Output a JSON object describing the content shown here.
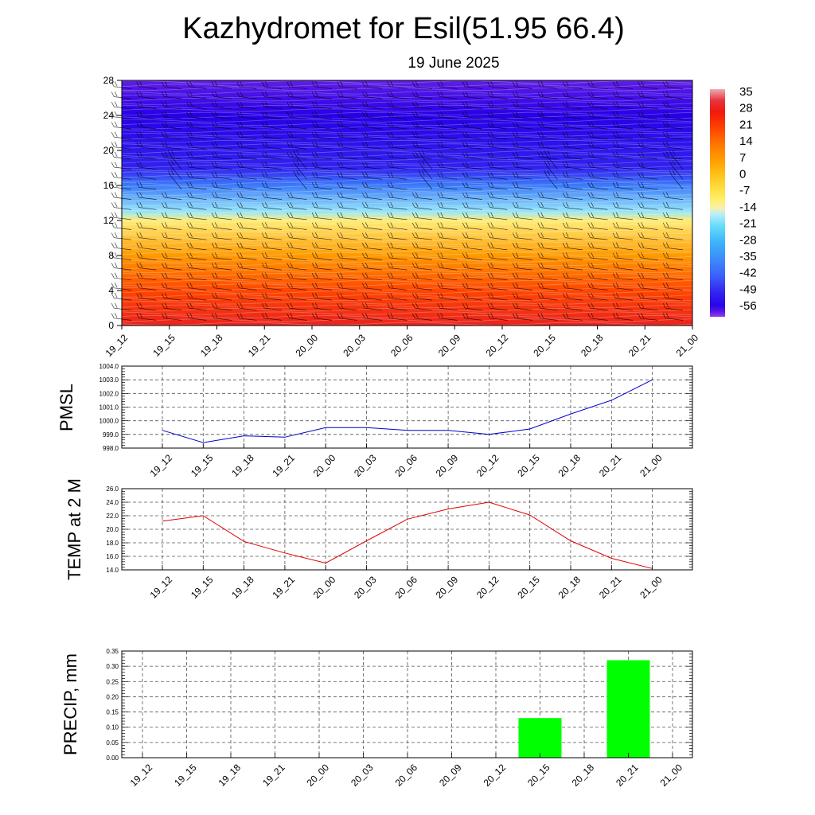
{
  "title": "Kazhydromet for Esil(51.95 66.4)",
  "subtitle": "19 June 2025",
  "time_labels": [
    "19_12",
    "19_15",
    "19_18",
    "19_21",
    "20_00",
    "20_03",
    "20_06",
    "20_09",
    "20_12",
    "20_15",
    "20_18",
    "20_21",
    "21_00"
  ],
  "colors": {
    "pmsl_line": "#0000cc",
    "temp_line": "#e00000",
    "precip_bar": "#00ff00",
    "grid": "#555555",
    "contour": "#ffffff",
    "barb": "#000000"
  },
  "chart_data": [
    {
      "type": "heatmap",
      "name_hint": "upper-air temperature cross-section",
      "x_categories": [
        "19_12",
        "19_15",
        "19_18",
        "19_21",
        "20_00",
        "20_03",
        "20_06",
        "20_09",
        "20_12",
        "20_15",
        "20_18",
        "20_21",
        "21_00"
      ],
      "y_ticks": [
        0,
        4,
        8,
        12,
        16,
        20,
        24,
        28
      ],
      "ylim": [
        0,
        28
      ],
      "colorbar_labels": [
        "35",
        "28",
        "21",
        "14",
        "7",
        "0",
        "-7",
        "-14",
        "-21",
        "-28",
        "-35",
        "-42",
        "-49",
        "-56"
      ],
      "colorbar_range": [
        -60,
        38
      ],
      "value_profile": [
        {
          "y": 0,
          "v": 30
        },
        {
          "y": 4,
          "v": 21
        },
        {
          "y": 8,
          "v": 8
        },
        {
          "y": 12,
          "v": -10
        },
        {
          "y": 13,
          "v": -18
        },
        {
          "y": 16,
          "v": -38
        },
        {
          "y": 18,
          "v": -50
        },
        {
          "y": 20,
          "v": -52
        },
        {
          "y": 24,
          "v": -56
        },
        {
          "y": 28,
          "v": -58
        }
      ],
      "grid": false
    },
    {
      "type": "line",
      "ylabel": "PMSL",
      "categories": [
        "19_12",
        "19_15",
        "19_18",
        "19_21",
        "20_00",
        "20_03",
        "20_06",
        "20_09",
        "20_12",
        "20_15",
        "20_18",
        "20_21",
        "21_00"
      ],
      "values": [
        999.3,
        998.4,
        998.9,
        998.8,
        999.5,
        999.5,
        999.3,
        999.3,
        999.0,
        999.4,
        1000.5,
        1001.5,
        1003.0
      ],
      "ylim": [
        998.0,
        1004.0
      ],
      "yticks": [
        "998.0",
        "999.0",
        "1000.0",
        "1001.0",
        "1002.0",
        "1003.0",
        "1004.0"
      ],
      "grid": true
    },
    {
      "type": "line",
      "ylabel": "TEMP at 2 M",
      "categories": [
        "19_12",
        "19_15",
        "19_18",
        "19_21",
        "20_00",
        "20_03",
        "20_06",
        "20_09",
        "20_12",
        "20_15",
        "20_18",
        "20_21",
        "21_00"
      ],
      "values": [
        21.2,
        22.0,
        18.2,
        16.5,
        15.0,
        18.3,
        21.5,
        23.0,
        24.0,
        22.1,
        18.3,
        15.7,
        14.2
      ],
      "ylim": [
        14.0,
        26.0
      ],
      "yticks": [
        "14.0",
        "16.0",
        "18.0",
        "20.0",
        "22.0",
        "24.0",
        "26.0"
      ],
      "grid": true
    },
    {
      "type": "bar",
      "ylabel": "PRECIP, mm",
      "categories": [
        "19_12",
        "19_15",
        "19_18",
        "19_21",
        "20_00",
        "20_03",
        "20_06",
        "20_09",
        "20_12",
        "20_15",
        "20_18",
        "20_21",
        "21_00"
      ],
      "values": [
        0,
        0,
        0,
        0,
        0,
        0,
        0,
        0,
        0,
        0.13,
        0,
        0.32,
        0
      ],
      "ylim": [
        0,
        0.35
      ],
      "yticks": [
        "0.00",
        "0.05",
        "0.10",
        "0.15",
        "0.20",
        "0.25",
        "0.30",
        "0.35"
      ],
      "grid": true
    }
  ]
}
